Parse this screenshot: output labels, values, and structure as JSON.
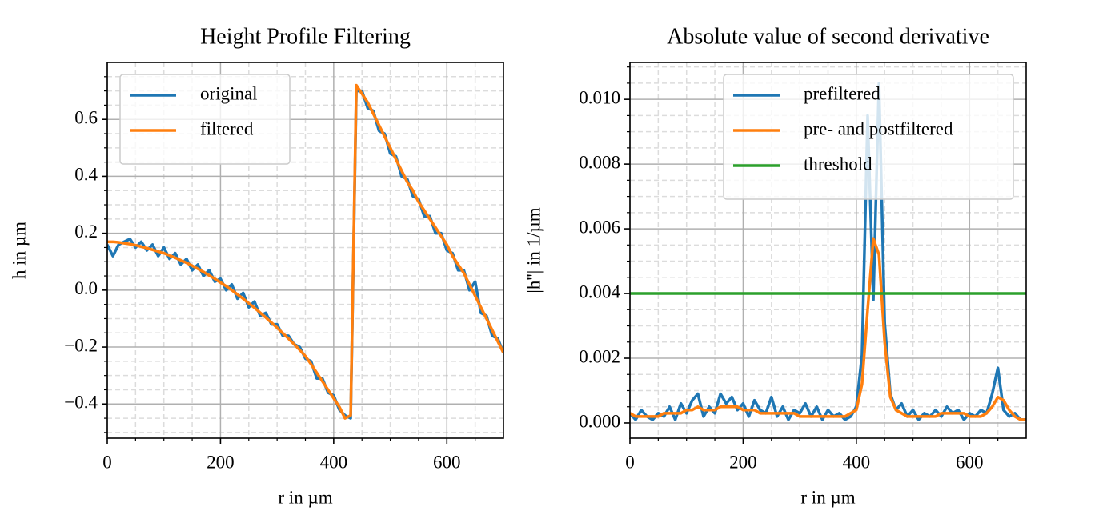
{
  "chart_data": [
    {
      "type": "line",
      "title": "Height Profile Filtering",
      "xlabel": "r in µm",
      "ylabel": "h in µm",
      "x": [
        0,
        10,
        20,
        30,
        40,
        50,
        60,
        70,
        80,
        90,
        100,
        110,
        120,
        130,
        140,
        150,
        160,
        170,
        180,
        190,
        200,
        210,
        220,
        230,
        240,
        250,
        260,
        270,
        280,
        290,
        300,
        310,
        320,
        330,
        340,
        350,
        360,
        370,
        380,
        390,
        400,
        410,
        420,
        430,
        440,
        450,
        460,
        470,
        480,
        490,
        500,
        510,
        520,
        530,
        540,
        550,
        560,
        570,
        580,
        590,
        600,
        610,
        620,
        630,
        640,
        650,
        660,
        670,
        680,
        690,
        700
      ],
      "series": [
        {
          "name": "original",
          "color": "#1f77b4",
          "values": [
            0.16,
            0.12,
            0.16,
            0.17,
            0.18,
            0.15,
            0.17,
            0.14,
            0.16,
            0.12,
            0.15,
            0.11,
            0.13,
            0.09,
            0.11,
            0.07,
            0.09,
            0.05,
            0.07,
            0.03,
            0.04,
            0.0,
            0.02,
            -0.03,
            -0.01,
            -0.06,
            -0.04,
            -0.09,
            -0.08,
            -0.12,
            -0.12,
            -0.16,
            -0.16,
            -0.19,
            -0.2,
            -0.24,
            -0.25,
            -0.31,
            -0.31,
            -0.36,
            -0.37,
            -0.42,
            -0.44,
            -0.45,
            0.7,
            0.7,
            0.64,
            0.63,
            0.56,
            0.55,
            0.48,
            0.47,
            0.4,
            0.39,
            0.33,
            0.32,
            0.26,
            0.26,
            0.2,
            0.2,
            0.14,
            0.13,
            0.07,
            0.07,
            0.0,
            0.03,
            -0.08,
            -0.09,
            -0.16,
            -0.17,
            -0.22
          ]
        },
        {
          "name": "filtered",
          "color": "#ff7f0e",
          "values": [
            0.17,
            0.17,
            0.168,
            0.165,
            0.162,
            0.158,
            0.153,
            0.148,
            0.142,
            0.136,
            0.13,
            0.122,
            0.114,
            0.105,
            0.096,
            0.086,
            0.075,
            0.064,
            0.052,
            0.04,
            0.027,
            0.014,
            0.0,
            -0.015,
            -0.03,
            -0.046,
            -0.062,
            -0.079,
            -0.096,
            -0.114,
            -0.132,
            -0.151,
            -0.17,
            -0.19,
            -0.21,
            -0.232,
            -0.26,
            -0.29,
            -0.32,
            -0.35,
            -0.38,
            -0.41,
            -0.45,
            -0.44,
            0.72,
            0.69,
            0.66,
            0.62,
            0.58,
            0.54,
            0.5,
            0.46,
            0.42,
            0.38,
            0.35,
            0.31,
            0.28,
            0.25,
            0.22,
            0.19,
            0.16,
            0.12,
            0.09,
            0.06,
            0.02,
            -0.02,
            -0.06,
            -0.1,
            -0.14,
            -0.18,
            -0.22
          ]
        }
      ],
      "xlim": [
        0,
        700
      ],
      "xticks": [
        0,
        200,
        400,
        600
      ],
      "ylim": [
        -0.52,
        0.8
      ],
      "yticks": [
        {
          "value": -0.4,
          "label": "−0.4"
        },
        {
          "value": -0.2,
          "label": "−0.2"
        },
        {
          "value": 0,
          "label": "0.0"
        },
        {
          "value": 0.2,
          "label": "0.2"
        },
        {
          "value": 0.4,
          "label": "0.4"
        },
        {
          "value": 0.6,
          "label": "0.6"
        }
      ],
      "xminor": [
        50,
        100,
        150,
        250,
        300,
        350,
        450,
        500,
        550,
        650
      ],
      "yminor": [
        -0.5,
        -0.45,
        -0.35,
        -0.3,
        -0.25,
        -0.15,
        -0.1,
        -0.05,
        0.05,
        0.1,
        0.15,
        0.25,
        0.3,
        0.35,
        0.45,
        0.5,
        0.55,
        0.65,
        0.7,
        0.75
      ],
      "grid": true,
      "legend": "upper left"
    },
    {
      "type": "line",
      "title": "Absolute value of second derivative",
      "xlabel": "r in µm",
      "ylabel": "|h''| in 1/µm",
      "x": [
        0,
        10,
        20,
        30,
        40,
        50,
        60,
        70,
        80,
        90,
        100,
        110,
        120,
        130,
        140,
        150,
        160,
        170,
        180,
        190,
        200,
        210,
        220,
        230,
        240,
        250,
        260,
        270,
        280,
        290,
        300,
        310,
        320,
        330,
        340,
        350,
        360,
        370,
        380,
        390,
        400,
        410,
        420,
        430,
        440,
        450,
        460,
        470,
        480,
        490,
        500,
        510,
        520,
        530,
        540,
        550,
        560,
        570,
        580,
        590,
        600,
        610,
        620,
        630,
        640,
        650,
        660,
        670,
        680,
        690,
        700
      ],
      "series": [
        {
          "name": "prefiltered",
          "color": "#1f77b4",
          "values": [
            0.0003,
            0.0001,
            0.0004,
            0.0002,
            0.0001,
            0.0003,
            0.0002,
            0.0005,
            0.0001,
            0.0006,
            0.0003,
            0.0007,
            0.0009,
            0.0002,
            0.0005,
            0.0003,
            0.0009,
            0.0006,
            0.0008,
            0.0004,
            0.0006,
            0.0002,
            0.0007,
            0.0004,
            0.0003,
            0.0008,
            0.0002,
            0.0005,
            0.0001,
            0.0004,
            0.0003,
            0.0006,
            0.0002,
            0.0005,
            0.0001,
            0.0004,
            0.0002,
            0.0003,
            0.0001,
            0.0002,
            0.0005,
            0.0021,
            0.0095,
            0.0038,
            0.0105,
            0.0031,
            0.0009,
            0.0004,
            0.0006,
            0.0002,
            0.0004,
            0.0001,
            0.0003,
            0.0002,
            0.0004,
            0.0002,
            0.0005,
            0.0003,
            0.0004,
            0.0001,
            0.0003,
            0.0002,
            0.0004,
            0.0003,
            0.0009,
            0.0017,
            0.0004,
            0.0002,
            0.0003,
            0.0001,
            0.0001
          ]
        },
        {
          "name": "pre- and postfiltered",
          "color": "#ff7f0e",
          "values": [
            0.0003,
            0.0002,
            0.0002,
            0.0002,
            0.0002,
            0.0002,
            0.0003,
            0.0003,
            0.0003,
            0.0003,
            0.0004,
            0.0004,
            0.0005,
            0.0004,
            0.0004,
            0.0004,
            0.0005,
            0.0005,
            0.0005,
            0.0005,
            0.0004,
            0.0004,
            0.0004,
            0.0003,
            0.0003,
            0.0003,
            0.0003,
            0.0003,
            0.0003,
            0.0003,
            0.0002,
            0.0002,
            0.0002,
            0.0002,
            0.0002,
            0.0002,
            0.0002,
            0.0002,
            0.0002,
            0.0003,
            0.0004,
            0.0012,
            0.0035,
            0.0057,
            0.0052,
            0.0025,
            0.0008,
            0.0004,
            0.0003,
            0.0002,
            0.0002,
            0.0002,
            0.0002,
            0.0002,
            0.0002,
            0.0003,
            0.0003,
            0.0003,
            0.0003,
            0.0003,
            0.0002,
            0.0002,
            0.0002,
            0.0003,
            0.0005,
            0.0008,
            0.0007,
            0.0004,
            0.0002,
            0.0001,
            0.0001
          ]
        },
        {
          "name": "threshold",
          "color": "#2ca02c",
          "x": [
            0,
            700
          ],
          "values": [
            0.004,
            0.004
          ]
        }
      ],
      "xlim": [
        0,
        700
      ],
      "xticks": [
        0,
        200,
        400,
        600
      ],
      "ylim": [
        -0.00047,
        0.01114
      ],
      "yticks": [
        {
          "value": 0,
          "label": "0.000"
        },
        {
          "value": 0.002,
          "label": "0.002"
        },
        {
          "value": 0.004,
          "label": "0.004"
        },
        {
          "value": 0.006,
          "label": "0.006"
        },
        {
          "value": 0.008,
          "label": "0.008"
        },
        {
          "value": 0.01,
          "label": "0.010"
        }
      ],
      "xminor": [
        50,
        100,
        150,
        250,
        300,
        350,
        450,
        500,
        550,
        650
      ],
      "yminor": [
        0.0005,
        0.001,
        0.0015,
        0.0025,
        0.003,
        0.0035,
        0.0045,
        0.005,
        0.0055,
        0.0065,
        0.007,
        0.0075,
        0.0085,
        0.009,
        0.0095,
        0.0105,
        0.011
      ],
      "grid": true,
      "legend": "upper right"
    }
  ]
}
